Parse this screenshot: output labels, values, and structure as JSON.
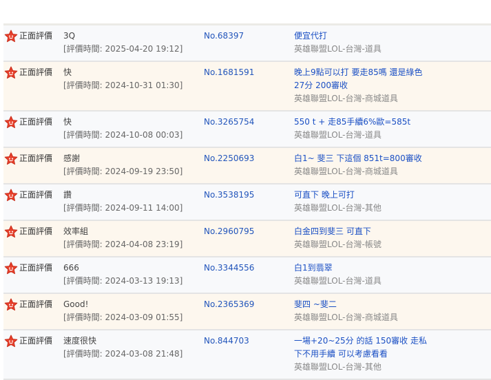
{
  "accent_color": "#1a4fc4",
  "icon": "smiling-star-icon",
  "reviews": [
    {
      "rating": "正面評價",
      "comment": "3Q",
      "time": "[評價時間: 2025-04-20 19:12]",
      "order": "No.68397",
      "desc": [
        "便宜代打"
      ],
      "category": "英雄聯盟LOL-台灣-道具"
    },
    {
      "rating": "正面評價",
      "comment": "快",
      "time": "[評價時間: 2024-10-31 01:30]",
      "order": "No.1681591",
      "desc": [
        "晚上9點可以打 要走85嗎 還是綠色",
        "27分 200審收"
      ],
      "category": "英雄聯盟LOL-台灣-商城道具"
    },
    {
      "rating": "正面評價",
      "comment": "快",
      "time": "[評價時間: 2024-10-08 00:03]",
      "order": "No.3265754",
      "desc": [
        "550 t + 走85手續6%歐=585t"
      ],
      "category": "英雄聯盟LOL-台灣-道具"
    },
    {
      "rating": "正面評價",
      "comment": "感謝",
      "time": "[評價時間: 2024-09-19 23:50]",
      "order": "No.2250693",
      "desc": [
        "白1~ 斐三 下這個 851t=800審收"
      ],
      "category": "英雄聯盟LOL-台灣-商城道具"
    },
    {
      "rating": "正面評價",
      "comment": "讚",
      "time": "[評價時間: 2024-09-11 14:00]",
      "order": "No.3538195",
      "desc": [
        "可直下 晚上可打"
      ],
      "category": "英雄聯盟LOL-台灣-其他"
    },
    {
      "rating": "正面評價",
      "comment": "效率組",
      "time": "[評價時間: 2024-04-08 23:19]",
      "order": "No.2960795",
      "desc": [
        "白金四到斐三 可直下"
      ],
      "category": "英雄聯盟LOL-台灣-帳號"
    },
    {
      "rating": "正面評價",
      "comment": "666",
      "time": "[評價時間: 2024-03-13 19:13]",
      "order": "No.3344556",
      "desc": [
        "白1到翡翠"
      ],
      "category": "英雄聯盟LOL-台灣-道具"
    },
    {
      "rating": "正面評價",
      "comment": "Good!",
      "time": "[評價時間: 2024-03-09 01:55]",
      "order": "No.2365369",
      "desc": [
        "斐四 ~斐二"
      ],
      "category": "英雄聯盟LOL-台灣-商城道具"
    },
    {
      "rating": "正面評價",
      "comment": "速度很快",
      "time": "[評價時間: 2024-03-08 21:48]",
      "order": "No.844703",
      "desc": [
        "一場+20~25分 的話 150審收 走私",
        "下不用手續 可以考慮看看"
      ],
      "category": "英雄聯盟LOL-台灣-其他"
    }
  ]
}
